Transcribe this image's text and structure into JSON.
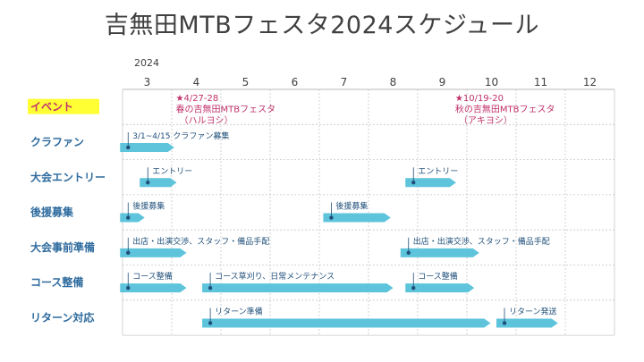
{
  "title": "吉無田MTBフェスタ2024スケジュール",
  "chart_data": {
    "type": "gantt",
    "year_label": "2024",
    "months": [
      3,
      4,
      5,
      6,
      7,
      8,
      9,
      10,
      11,
      12
    ],
    "rows": [
      "イベント",
      "クラファン",
      "大会エントリー",
      "後援募集",
      "大会事前準備",
      "コース整備",
      "リターン対応"
    ],
    "highlight_row": "イベント",
    "events": [
      {
        "lines": [
          "★4/27-28",
          "春の吉無田MTBフェスタ",
          "（ハルヨシ）"
        ],
        "x": 4.3
      },
      {
        "lines": [
          "★10/19-20",
          "秋の吉無田MTBフェスタ",
          "（アキヨシ）"
        ],
        "x": 9.98
      }
    ],
    "bars": [
      {
        "row": 1,
        "start": 2.95,
        "end": 4.05,
        "label": "3/1~4/15 クラファン募集"
      },
      {
        "row": 2,
        "start": 3.35,
        "end": 4.1,
        "label": "エントリー"
      },
      {
        "row": 2,
        "start": 8.75,
        "end": 9.78,
        "label": "エントリー"
      },
      {
        "row": 3,
        "start": 2.95,
        "end": 3.45,
        "label": "後援募集"
      },
      {
        "row": 3,
        "start": 7.08,
        "end": 8.45,
        "label": "後援募集"
      },
      {
        "row": 4,
        "start": 2.95,
        "end": 4.3,
        "label": "出店・出演交渉、スタッフ・備品手配"
      },
      {
        "row": 4,
        "start": 8.65,
        "end": 10.25,
        "label": "出店・出演交渉、スタッフ・備品手配"
      },
      {
        "row": 5,
        "start": 2.95,
        "end": 4.3,
        "label": "コース整備"
      },
      {
        "row": 5,
        "start": 4.62,
        "end": 8.5,
        "label": "コース草刈り、日常メンテナンス"
      },
      {
        "row": 5,
        "start": 8.75,
        "end": 10.15,
        "label": "コース整備"
      },
      {
        "row": 6,
        "start": 4.62,
        "end": 10.48,
        "label": "リターン準備"
      },
      {
        "row": 6,
        "start": 10.6,
        "end": 11.85,
        "label": "リターン発送"
      }
    ],
    "colors": {
      "bar": "#5ec4dc",
      "grid": "#c8c8c8",
      "event": "#c0306a",
      "highlight": "#ffff33"
    }
  }
}
